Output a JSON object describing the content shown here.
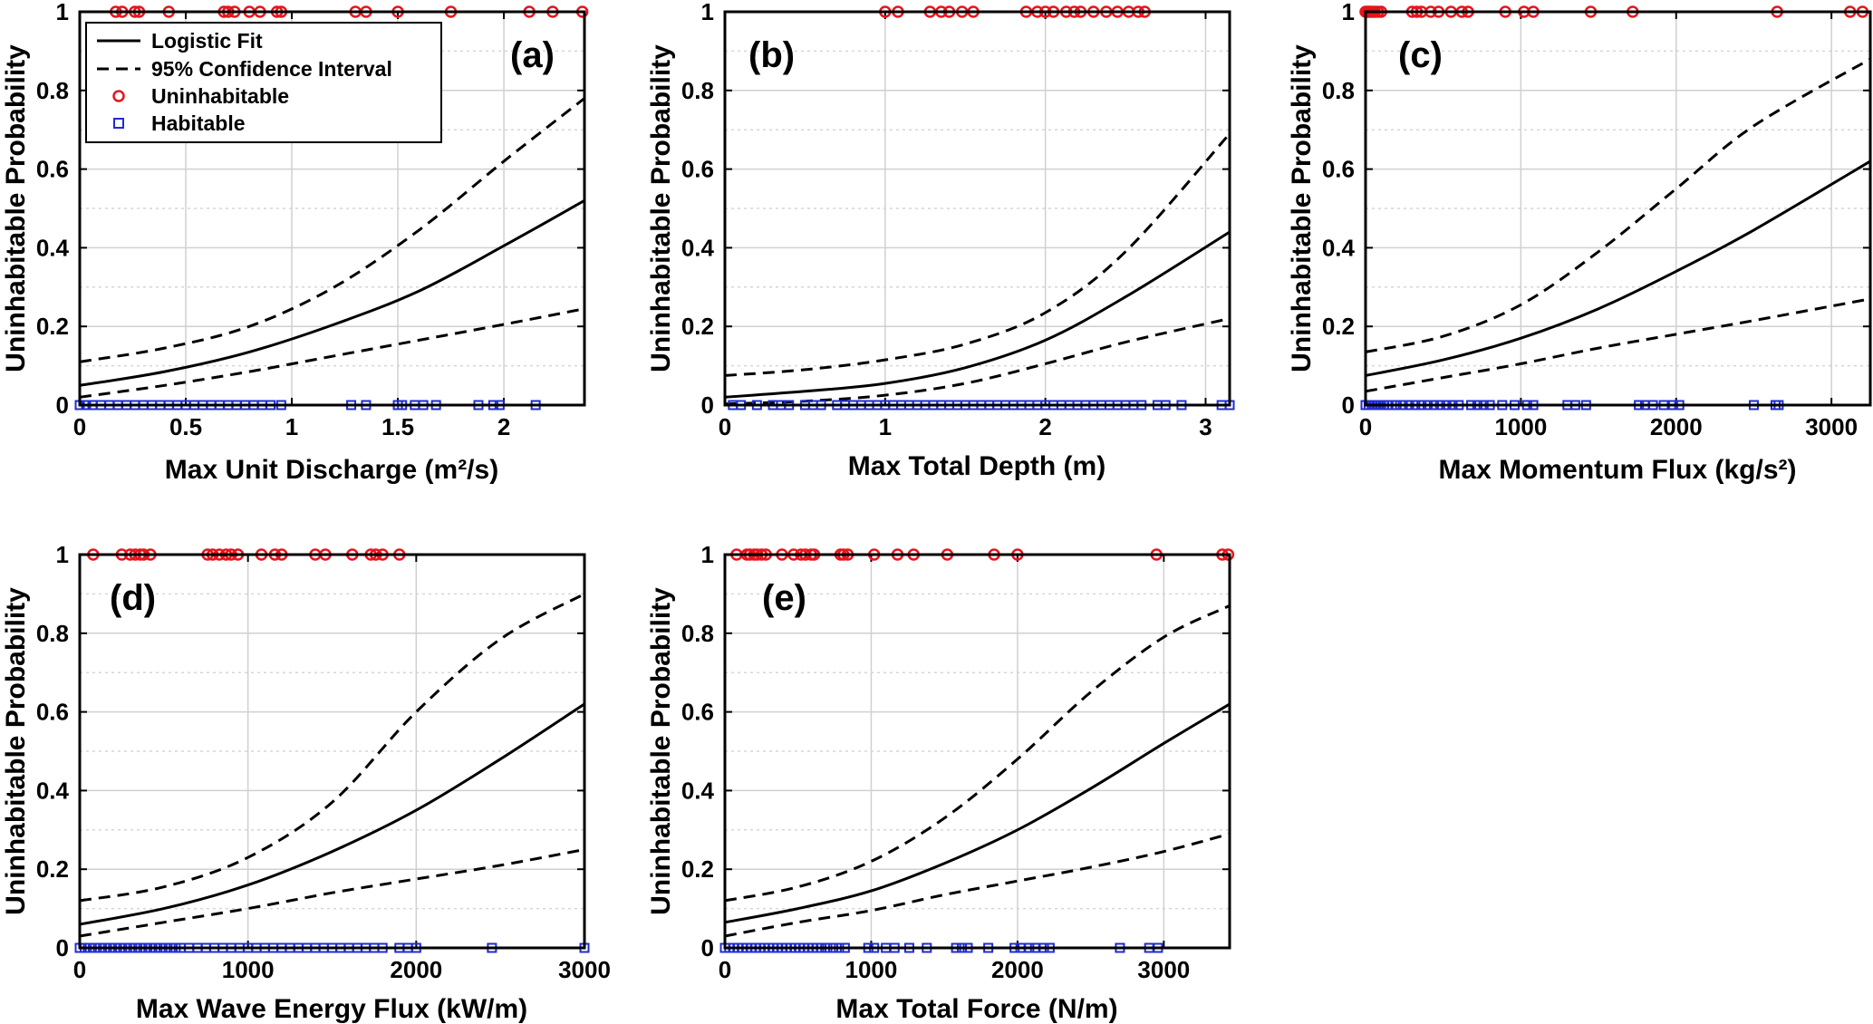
{
  "legend": {
    "fit": "Logistic Fit",
    "ci": "95% Confidence Interval",
    "uninhabitable": "Uninhabitable",
    "habitable": "Habitable"
  },
  "colors": {
    "uninhabitable": "#e8141c",
    "habitable": "#1f2bd6",
    "curve": "#000000"
  },
  "chart_data": [
    {
      "type": "scatter",
      "tag": "(a)",
      "xlabel": "Max  Unit  Discharge  (m²/s)",
      "ylabel": "Uninhabitable Probability",
      "xlim": [
        0,
        2.38
      ],
      "ylim": [
        0,
        1
      ],
      "xticks": [
        0,
        0.5,
        1,
        1.5,
        2
      ],
      "xtick_labels": [
        "0",
        "0.5",
        "1",
        "1.5",
        "2"
      ],
      "yticks": [
        0,
        0.2,
        0.4,
        0.6,
        0.8,
        1
      ],
      "ytick_labels": [
        "0",
        "0.2",
        "0.4",
        "0.6",
        "0.8",
        "1"
      ],
      "fit": {
        "x": [
          0,
          0.4,
          0.8,
          1.2,
          1.6,
          2.0,
          2.38
        ],
        "y": [
          0.05,
          0.085,
          0.135,
          0.205,
          0.29,
          0.405,
          0.52
        ]
      },
      "upper": {
        "x": [
          0,
          0.4,
          0.8,
          1.2,
          1.6,
          2.0,
          2.38
        ],
        "y": [
          0.11,
          0.145,
          0.2,
          0.3,
          0.445,
          0.62,
          0.78
        ]
      },
      "lower": {
        "x": [
          0,
          0.4,
          0.8,
          1.2,
          1.6,
          2.0,
          2.38
        ],
        "y": [
          0.02,
          0.05,
          0.085,
          0.125,
          0.165,
          0.205,
          0.245
        ]
      },
      "uninhabitable_x": [
        0.17,
        0.2,
        0.26,
        0.28,
        0.42,
        0.68,
        0.7,
        0.73,
        0.8,
        0.85,
        0.93,
        0.95,
        1.3,
        1.35,
        1.5,
        1.75,
        2.12,
        2.23,
        2.37
      ],
      "habitable_x": [
        0.0,
        0.03,
        0.06,
        0.1,
        0.14,
        0.18,
        0.22,
        0.26,
        0.3,
        0.34,
        0.38,
        0.42,
        0.46,
        0.5,
        0.54,
        0.58,
        0.62,
        0.66,
        0.7,
        0.74,
        0.78,
        0.82,
        0.86,
        0.9,
        0.95,
        1.28,
        1.35,
        1.5,
        1.52,
        1.58,
        1.62,
        1.68,
        1.88,
        1.95,
        1.98,
        2.15
      ]
    },
    {
      "type": "scatter",
      "tag": "(b)",
      "xlabel": "Max Total Depth (m)",
      "ylabel": "Uninhabitable Probability",
      "xlim": [
        0,
        3.15
      ],
      "ylim": [
        0,
        1
      ],
      "xticks": [
        0,
        1,
        2,
        3
      ],
      "xtick_labels": [
        "0",
        "1",
        "2",
        "3"
      ],
      "yticks": [
        0,
        0.2,
        0.4,
        0.6,
        0.8,
        1
      ],
      "ytick_labels": [
        "0",
        "0.2",
        "0.4",
        "0.6",
        "0.8",
        "1"
      ],
      "fit": {
        "x": [
          0,
          0.5,
          1.0,
          1.5,
          2.0,
          2.5,
          3.15
        ],
        "y": [
          0.02,
          0.035,
          0.055,
          0.095,
          0.165,
          0.275,
          0.44
        ]
      },
      "upper": {
        "x": [
          0,
          0.5,
          1.0,
          1.5,
          2.0,
          2.5,
          3.15
        ],
        "y": [
          0.075,
          0.09,
          0.115,
          0.155,
          0.235,
          0.39,
          0.69
        ]
      },
      "lower": {
        "x": [
          0,
          0.5,
          1.0,
          1.5,
          2.0,
          2.5,
          3.15
        ],
        "y": [
          0.003,
          0.01,
          0.025,
          0.055,
          0.105,
          0.16,
          0.22
        ]
      },
      "uninhabitable_x": [
        1.0,
        1.08,
        1.28,
        1.35,
        1.4,
        1.48,
        1.55,
        1.88,
        1.95,
        2.0,
        2.05,
        2.13,
        2.18,
        2.22,
        2.3,
        2.38,
        2.45,
        2.52,
        2.58,
        2.62
      ],
      "habitable_x": [
        0.05,
        0.1,
        0.2,
        0.3,
        0.35,
        0.4,
        0.5,
        0.55,
        0.6,
        0.7,
        0.75,
        0.8,
        0.85,
        0.9,
        0.95,
        1.0,
        1.05,
        1.1,
        1.15,
        1.2,
        1.25,
        1.3,
        1.35,
        1.4,
        1.45,
        1.5,
        1.55,
        1.6,
        1.65,
        1.7,
        1.75,
        1.8,
        1.85,
        1.9,
        1.95,
        2.0,
        2.05,
        2.1,
        2.15,
        2.2,
        2.25,
        2.3,
        2.35,
        2.4,
        2.45,
        2.5,
        2.55,
        2.6,
        2.7,
        2.75,
        2.85,
        3.1,
        3.15
      ]
    },
    {
      "type": "scatter",
      "tag": "(c)",
      "xlabel": "Max  Momentum  Flux  (kg/s²)",
      "ylabel": "Uninhabitable Probability",
      "xlim": [
        0,
        3250
      ],
      "ylim": [
        0,
        1
      ],
      "xticks": [
        0,
        1000,
        2000,
        3000
      ],
      "xtick_labels": [
        "0",
        "1000",
        "2000",
        "3000"
      ],
      "yticks": [
        0,
        0.2,
        0.4,
        0.6,
        0.8,
        1
      ],
      "ytick_labels": [
        "0",
        "0.2",
        "0.4",
        "0.6",
        "0.8",
        "1"
      ],
      "fit": {
        "x": [
          0,
          500,
          1000,
          1500,
          2000,
          2500,
          3250
        ],
        "y": [
          0.075,
          0.115,
          0.17,
          0.245,
          0.34,
          0.445,
          0.62
        ]
      },
      "upper": {
        "x": [
          0,
          500,
          1000,
          1500,
          2000,
          2500,
          3250
        ],
        "y": [
          0.135,
          0.175,
          0.255,
          0.39,
          0.55,
          0.71,
          0.88
        ]
      },
      "lower": {
        "x": [
          0,
          500,
          1000,
          1500,
          2000,
          2500,
          3250
        ],
        "y": [
          0.035,
          0.07,
          0.105,
          0.145,
          0.18,
          0.215,
          0.27
        ]
      },
      "uninhabitable_x": [
        0,
        10,
        20,
        30,
        45,
        60,
        80,
        100,
        300,
        330,
        360,
        420,
        470,
        550,
        620,
        660,
        900,
        1020,
        1080,
        1450,
        1720,
        2650,
        3120,
        3200
      ],
      "habitable_x": [
        0,
        20,
        40,
        60,
        80,
        100,
        120,
        140,
        170,
        200,
        240,
        280,
        320,
        360,
        400,
        440,
        480,
        520,
        560,
        600,
        680,
        720,
        760,
        800,
        880,
        960,
        1040,
        1080,
        1300,
        1350,
        1420,
        1760,
        1800,
        1850,
        1920,
        1980,
        2020,
        2500,
        2640,
        2660
      ]
    },
    {
      "type": "scatter",
      "tag": "(d)",
      "xlabel": "Max Wave Energy Flux (kW/m)",
      "ylabel": "Uninhabitable Probability",
      "xlim": [
        0,
        3000
      ],
      "ylim": [
        0,
        1
      ],
      "xticks": [
        0,
        1000,
        2000,
        3000
      ],
      "xtick_labels": [
        "0",
        "1000",
        "2000",
        "3000"
      ],
      "yticks": [
        0,
        0.2,
        0.4,
        0.6,
        0.8,
        1
      ],
      "ytick_labels": [
        "0",
        "0.2",
        "0.4",
        "0.6",
        "0.8",
        "1"
      ],
      "fit": {
        "x": [
          0,
          500,
          1000,
          1500,
          2000,
          2500,
          3000
        ],
        "y": [
          0.06,
          0.1,
          0.16,
          0.245,
          0.35,
          0.48,
          0.62
        ]
      },
      "upper": {
        "x": [
          0,
          500,
          1000,
          1500,
          2000,
          2500,
          3000
        ],
        "y": [
          0.12,
          0.155,
          0.23,
          0.37,
          0.6,
          0.785,
          0.9
        ]
      },
      "lower": {
        "x": [
          0,
          500,
          1000,
          1500,
          2000,
          2500,
          3000
        ],
        "y": [
          0.03,
          0.065,
          0.1,
          0.14,
          0.175,
          0.21,
          0.25
        ]
      },
      "uninhabitable_x": [
        80,
        250,
        300,
        330,
        360,
        380,
        420,
        760,
        790,
        830,
        870,
        900,
        940,
        1080,
        1160,
        1200,
        1400,
        1460,
        1620,
        1730,
        1760,
        1800,
        1900
      ],
      "habitable_x": [
        0,
        30,
        60,
        90,
        120,
        150,
        180,
        210,
        240,
        270,
        300,
        330,
        360,
        390,
        420,
        450,
        480,
        510,
        540,
        570,
        600,
        650,
        700,
        750,
        800,
        850,
        900,
        950,
        1000,
        1050,
        1100,
        1150,
        1200,
        1250,
        1300,
        1350,
        1400,
        1450,
        1500,
        1550,
        1600,
        1650,
        1700,
        1750,
        1800,
        1900,
        1950,
        2000,
        2450,
        3000
      ]
    },
    {
      "type": "scatter",
      "tag": "(e)",
      "xlabel": "Max Total Force (N/m)",
      "ylabel": "Uninhabitable Probability",
      "xlim": [
        0,
        3450
      ],
      "ylim": [
        0,
        1
      ],
      "xticks": [
        0,
        1000,
        2000,
        3000
      ],
      "xtick_labels": [
        "0",
        "1000",
        "2000",
        "3000"
      ],
      "yticks": [
        0,
        0.2,
        0.4,
        0.6,
        0.8,
        1
      ],
      "ytick_labels": [
        "0",
        "0.2",
        "0.4",
        "0.6",
        "0.8",
        "1"
      ],
      "fit": {
        "x": [
          0,
          500,
          1000,
          1500,
          2000,
          2500,
          3000,
          3450
        ],
        "y": [
          0.065,
          0.1,
          0.145,
          0.215,
          0.3,
          0.405,
          0.52,
          0.62
        ]
      },
      "upper": {
        "x": [
          0,
          500,
          1000,
          1500,
          2000,
          2500,
          3000,
          3450
        ],
        "y": [
          0.12,
          0.155,
          0.22,
          0.33,
          0.48,
          0.65,
          0.79,
          0.87
        ]
      },
      "lower": {
        "x": [
          0,
          500,
          1000,
          1500,
          2000,
          2500,
          3000,
          3450
        ],
        "y": [
          0.03,
          0.065,
          0.095,
          0.135,
          0.17,
          0.205,
          0.245,
          0.29
        ]
      },
      "uninhabitable_x": [
        80,
        150,
        170,
        200,
        220,
        250,
        280,
        390,
        470,
        520,
        550,
        590,
        610,
        790,
        810,
        840,
        1020,
        1180,
        1290,
        1520,
        1840,
        2000,
        2950,
        3400,
        3440
      ],
      "habitable_x": [
        0,
        30,
        60,
        90,
        120,
        150,
        180,
        210,
        240,
        270,
        300,
        330,
        360,
        390,
        420,
        450,
        480,
        510,
        540,
        570,
        600,
        630,
        660,
        700,
        740,
        780,
        820,
        980,
        1020,
        1100,
        1160,
        1260,
        1380,
        1580,
        1620,
        1660,
        1800,
        1980,
        2020,
        2080,
        2120,
        2180,
        2220,
        2700,
        2900,
        2960
      ]
    }
  ]
}
